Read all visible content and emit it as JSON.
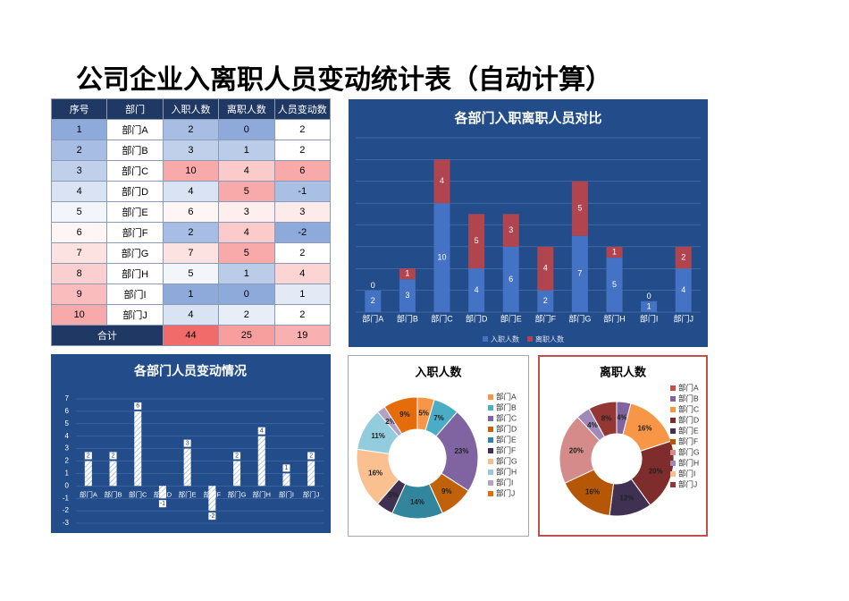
{
  "title": "公司企业入离职人员变动统计表（自动计算）",
  "table": {
    "columns": [
      "序号",
      "部门",
      "入职人数",
      "离职人数",
      "人员变动数"
    ],
    "rows": [
      [
        1,
        "部门A",
        2,
        0,
        2
      ],
      [
        2,
        "部门B",
        3,
        1,
        2
      ],
      [
        3,
        "部门C",
        10,
        4,
        6
      ],
      [
        4,
        "部门D",
        4,
        5,
        -1
      ],
      [
        5,
        "部门E",
        6,
        3,
        3
      ],
      [
        6,
        "部门F",
        2,
        4,
        -2
      ],
      [
        7,
        "部门G",
        7,
        5,
        2
      ],
      [
        8,
        "部门H",
        5,
        1,
        4
      ],
      [
        9,
        "部门I",
        1,
        0,
        1
      ],
      [
        10,
        "部门J",
        4,
        2,
        2
      ]
    ],
    "total_label": "合计",
    "totals": [
      44,
      25,
      19
    ]
  },
  "chart_data": [
    {
      "type": "stacked_bar",
      "title": "各部门入职离职人员对比",
      "categories": [
        "部门A",
        "部门B",
        "部门C",
        "部门D",
        "部门E",
        "部门F",
        "部门G",
        "部门H",
        "部门I",
        "部门J"
      ],
      "series": [
        {
          "name": "入职人数",
          "color": "#4472c4",
          "values": [
            2,
            3,
            10,
            4,
            6,
            2,
            7,
            5,
            1,
            4
          ]
        },
        {
          "name": "离职人数",
          "color": "#b0454f",
          "values": [
            0,
            1,
            4,
            5,
            3,
            4,
            5,
            1,
            0,
            2
          ]
        }
      ],
      "ylim": [
        0,
        16
      ],
      "yticks": [
        0,
        2,
        4,
        6,
        8,
        10,
        12,
        14,
        16
      ],
      "grid": true,
      "legend": "bottom"
    },
    {
      "type": "bar",
      "title": "各部门人员变动情况",
      "categories": [
        "部门A",
        "部门B",
        "部门C",
        "部门D",
        "部门E",
        "部门F",
        "部门G",
        "部门H",
        "部门I",
        "部门J"
      ],
      "values": [
        2,
        2,
        6,
        -1,
        3,
        -2,
        2,
        4,
        1,
        2
      ],
      "ylim": [
        -3,
        7
      ],
      "yticks": [
        -3,
        -2,
        -1,
        0,
        1,
        2,
        3,
        4,
        5,
        6,
        7
      ],
      "grid": true
    },
    {
      "type": "donut",
      "title": "入职人数",
      "categories": [
        "部门A",
        "部门B",
        "部门C",
        "部门D",
        "部门E",
        "部门F",
        "部门G",
        "部门H",
        "部门I",
        "部门J"
      ],
      "values": [
        4.55,
        6.82,
        22.73,
        9.09,
        13.64,
        4.55,
        15.91,
        11.36,
        2.27,
        9.09
      ],
      "value_labels": [
        "5%",
        "7%",
        "23%",
        "9%",
        "14%",
        "5%",
        "16%",
        "11%",
        "2%",
        "9%"
      ],
      "colors": [
        "#f79646",
        "#4bacc6",
        "#8064a2",
        "#c0620c",
        "#31859c",
        "#403152",
        "#fac08f",
        "#93cddd",
        "#b3a2c7",
        "#e46c0a"
      ],
      "legend": "right"
    },
    {
      "type": "donut",
      "title": "离职人数",
      "categories": [
        "部门A",
        "部门B",
        "部门C",
        "部门D",
        "部门E",
        "部门F",
        "部门G",
        "部门H",
        "部门I",
        "部门J"
      ],
      "values": [
        0,
        4,
        16,
        20,
        12,
        16,
        20,
        4,
        0,
        8
      ],
      "value_labels": [
        null,
        "4%",
        "16%",
        "20%",
        "12%",
        "16%",
        "20%",
        "4%",
        null,
        "8%"
      ],
      "colors": [
        "#c0504d",
        "#8064a2",
        "#f79646",
        "#7f2c2c",
        "#403152",
        "#b65708",
        "#d48b8a",
        "#9e89b8",
        "#fac090",
        "#943634"
      ],
      "legend": "right"
    }
  ]
}
